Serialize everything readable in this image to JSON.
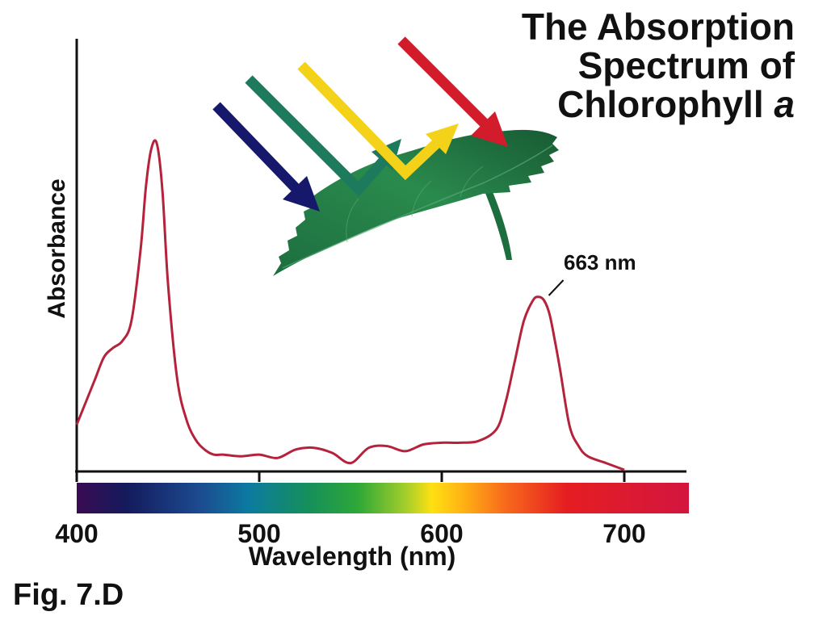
{
  "chart_data": {
    "type": "line",
    "title_line1": "The Absorption",
    "title_line2": "Spectrum of",
    "title_line3": "Chlorophyll",
    "title_italic": "a",
    "xlabel": "Wavelength (nm)",
    "ylabel": "Absorbance",
    "xlim": [
      400,
      735
    ],
    "ylim": [
      0,
      1
    ],
    "xticks": [
      400,
      500,
      600,
      700
    ],
    "tick_labels": [
      "400",
      "500",
      "600",
      "700"
    ],
    "annotation": {
      "text": "663 nm",
      "x": 656,
      "y": 0.5
    },
    "grid": false,
    "series": [
      {
        "color": "#b5223c",
        "x": [
          400,
          405,
          410,
          415,
          420,
          425,
          430,
          435,
          438,
          441,
          444,
          447,
          450,
          455,
          460,
          465,
          470,
          475,
          480,
          490,
          500,
          510,
          520,
          530,
          540,
          550,
          560,
          570,
          580,
          590,
          600,
          610,
          620,
          630,
          635,
          640,
          645,
          650,
          653,
          656,
          659,
          662,
          665,
          670,
          675,
          680,
          690,
          700
        ],
        "y": [
          0.133,
          0.2,
          0.267,
          0.333,
          0.36,
          0.38,
          0.44,
          0.65,
          0.84,
          0.95,
          0.96,
          0.82,
          0.55,
          0.27,
          0.15,
          0.09,
          0.06,
          0.045,
          0.045,
          0.04,
          0.045,
          0.035,
          0.06,
          0.065,
          0.05,
          0.02,
          0.065,
          0.07,
          0.055,
          0.075,
          0.08,
          0.08,
          0.085,
          0.12,
          0.2,
          0.32,
          0.44,
          0.5,
          0.51,
          0.5,
          0.46,
          0.38,
          0.29,
          0.13,
          0.07,
          0.04,
          0.02,
          0.0
        ]
      }
    ]
  },
  "caption": "Fig. 7.D",
  "colors": {
    "curve": "#b5223c",
    "axis": "#111111",
    "leaf": "#1f6b3c",
    "arrow_blue": "#16196b",
    "arrow_green": "#1d7a5c",
    "arrow_yellow": "#f5d21a",
    "arrow_red": "#d21c2c"
  }
}
